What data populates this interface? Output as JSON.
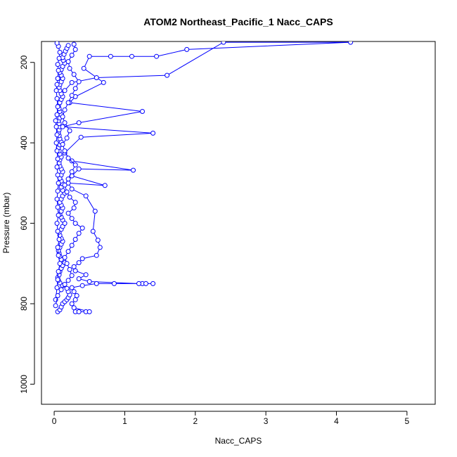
{
  "chart_data": {
    "type": "scatter",
    "title": "ATOM2 Northeast_Pacific_1 Nacc_CAPS",
    "xlabel": "Nacc_CAPS",
    "ylabel": "Pressure (mbar)",
    "xlim": [
      -0.18,
      5.4
    ],
    "ylim": [
      1050,
      148
    ],
    "y_reversed": true,
    "grid": false,
    "legend": "none",
    "color": "#0000ff",
    "x_ticks": [
      0,
      1,
      2,
      3,
      4,
      5
    ],
    "x_tick_labels": [
      "0",
      "1",
      "2",
      "3",
      "4",
      "5"
    ],
    "y_ticks": [
      200,
      400,
      600,
      800,
      1000
    ],
    "y_tick_labels": [
      "200",
      "400",
      "600",
      "800",
      "1000"
    ],
    "series": [
      {
        "values": [
          [
            0.05,
            820
          ],
          [
            0.08,
            815
          ],
          [
            0.1,
            808
          ],
          [
            0.12,
            800
          ],
          [
            0.15,
            795
          ],
          [
            0.18,
            790
          ],
          [
            0.2,
            785
          ],
          [
            0.22,
            778
          ],
          [
            0.2,
            770
          ],
          [
            0.18,
            762
          ],
          [
            0.12,
            755
          ],
          [
            0.08,
            748
          ],
          [
            0.06,
            742
          ],
          [
            0.05,
            735
          ],
          [
            0.07,
            728
          ],
          [
            0.08,
            720
          ],
          [
            0.1,
            712
          ],
          [
            0.12,
            705
          ],
          [
            0.15,
            698
          ],
          [
            0.1,
            690
          ],
          [
            0.08,
            682
          ],
          [
            0.07,
            675
          ],
          [
            0.06,
            668
          ],
          [
            0.08,
            660
          ],
          [
            0.1,
            652
          ],
          [
            0.12,
            645
          ],
          [
            0.1,
            638
          ],
          [
            0.08,
            630
          ],
          [
            0.07,
            622
          ],
          [
            0.1,
            615
          ],
          [
            0.12,
            608
          ],
          [
            0.15,
            600
          ],
          [
            0.12,
            592
          ],
          [
            0.1,
            585
          ],
          [
            0.08,
            578
          ],
          [
            0.1,
            570
          ],
          [
            0.12,
            562
          ],
          [
            0.1,
            555
          ],
          [
            0.08,
            548
          ],
          [
            0.1,
            540
          ],
          [
            0.12,
            532
          ],
          [
            0.15,
            525
          ],
          [
            0.12,
            518
          ],
          [
            0.1,
            510
          ],
          [
            0.12,
            502
          ],
          [
            0.1,
            495
          ],
          [
            0.08,
            488
          ],
          [
            0.1,
            480
          ],
          [
            0.12,
            472
          ],
          [
            0.1,
            465
          ],
          [
            0.08,
            458
          ],
          [
            0.07,
            450
          ],
          [
            0.08,
            442
          ],
          [
            0.1,
            435
          ],
          [
            0.08,
            428
          ],
          [
            0.07,
            420
          ],
          [
            0.06,
            412
          ],
          [
            0.08,
            405
          ],
          [
            0.1,
            398
          ],
          [
            0.08,
            390
          ],
          [
            0.07,
            382
          ],
          [
            0.06,
            375
          ],
          [
            0.07,
            368
          ],
          [
            0.08,
            360
          ],
          [
            0.07,
            352
          ],
          [
            0.06,
            345
          ],
          [
            0.08,
            338
          ],
          [
            0.1,
            330
          ],
          [
            0.08,
            322
          ],
          [
            0.07,
            315
          ],
          [
            0.06,
            308
          ],
          [
            0.08,
            300
          ],
          [
            0.1,
            292
          ],
          [
            0.12,
            285
          ],
          [
            0.1,
            278
          ],
          [
            0.08,
            270
          ],
          [
            0.07,
            262
          ],
          [
            0.08,
            255
          ],
          [
            0.1,
            248
          ],
          [
            0.12,
            240
          ],
          [
            0.1,
            232
          ],
          [
            0.08,
            225
          ],
          [
            0.1,
            218
          ],
          [
            0.12,
            210
          ],
          [
            0.15,
            202
          ],
          [
            0.13,
            195
          ],
          [
            0.12,
            188
          ],
          [
            0.14,
            180
          ],
          [
            0.16,
            172
          ],
          [
            0.18,
            165
          ],
          [
            0.2,
            158
          ]
        ]
      },
      {
        "values": [
          [
            0.02,
            790
          ],
          [
            0.04,
            760
          ],
          [
            0.05,
            740
          ],
          [
            0.06,
            720
          ],
          [
            0.08,
            700
          ],
          [
            0.06,
            680
          ],
          [
            0.05,
            660
          ],
          [
            0.07,
            640
          ],
          [
            0.05,
            620
          ],
          [
            0.04,
            600
          ],
          [
            0.06,
            580
          ],
          [
            0.05,
            560
          ],
          [
            0.04,
            540
          ],
          [
            0.05,
            520
          ],
          [
            0.06,
            500
          ],
          [
            0.05,
            480
          ],
          [
            0.04,
            460
          ],
          [
            0.05,
            440
          ],
          [
            0.04,
            420
          ],
          [
            0.03,
            400
          ],
          [
            0.04,
            380
          ],
          [
            0.03,
            360
          ],
          [
            0.02,
            345
          ],
          [
            0.04,
            330
          ],
          [
            0.05,
            310
          ],
          [
            0.04,
            290
          ],
          [
            0.03,
            270
          ],
          [
            0.04,
            255
          ],
          [
            0.05,
            240
          ],
          [
            0.06,
            220
          ],
          [
            0.05,
            205
          ],
          [
            0.07,
            190
          ],
          [
            0.08,
            175
          ],
          [
            0.06,
            160
          ],
          [
            0.04,
            152
          ]
        ]
      },
      {
        "values": [
          [
            0.3,
            820
          ],
          [
            0.35,
            820
          ],
          [
            0.45,
            820
          ],
          [
            0.5,
            820
          ],
          [
            0.28,
            810
          ],
          [
            0.25,
            800
          ],
          [
            0.3,
            790
          ],
          [
            0.32,
            780
          ],
          [
            0.28,
            770
          ],
          [
            0.25,
            760
          ],
          [
            0.4,
            755
          ],
          [
            0.6,
            750
          ],
          [
            0.85,
            750
          ],
          [
            1.25,
            750
          ],
          [
            1.3,
            750
          ],
          [
            1.4,
            750
          ],
          [
            1.2,
            750
          ],
          [
            0.5,
            745
          ],
          [
            0.35,
            738
          ],
          [
            0.45,
            728
          ],
          [
            0.3,
            718
          ],
          [
            0.28,
            708
          ],
          [
            0.35,
            698
          ],
          [
            0.4,
            688
          ],
          [
            0.6,
            680
          ],
          [
            0.65,
            660
          ],
          [
            0.62,
            642
          ],
          [
            0.55,
            620
          ],
          [
            0.58,
            570
          ],
          [
            0.45,
            532
          ],
          [
            0.25,
            515
          ],
          [
            0.2,
            500
          ],
          [
            0.72,
            506
          ],
          [
            0.25,
            482
          ],
          [
            0.35,
            465
          ],
          [
            1.12,
            468
          ],
          [
            0.25,
            445
          ],
          [
            0.15,
            425
          ],
          [
            0.38,
            386
          ],
          [
            1.4,
            376
          ],
          [
            0.12,
            360
          ],
          [
            0.35,
            350
          ],
          [
            1.25,
            322
          ],
          [
            0.22,
            300
          ],
          [
            0.3,
            285
          ],
          [
            0.7,
            250
          ],
          [
            0.42,
            215
          ],
          [
            0.5,
            185
          ],
          [
            0.8,
            185
          ],
          [
            1.1,
            185
          ],
          [
            1.45,
            185
          ],
          [
            1.88,
            168
          ],
          [
            4.2,
            150
          ],
          [
            2.4,
            150
          ],
          [
            1.6,
            232
          ],
          [
            0.6,
            238
          ],
          [
            0.25,
            250
          ],
          [
            0.15,
            270
          ]
        ]
      },
      {
        "values": [
          [
            0.02,
            805
          ],
          [
            0.05,
            780
          ],
          [
            0.1,
            765
          ],
          [
            0.15,
            752
          ],
          [
            0.2,
            742
          ],
          [
            0.25,
            730
          ],
          [
            0.22,
            715
          ],
          [
            0.18,
            700
          ],
          [
            0.15,
            685
          ],
          [
            0.2,
            670
          ],
          [
            0.25,
            655
          ],
          [
            0.3,
            640
          ],
          [
            0.35,
            625
          ],
          [
            0.4,
            612
          ],
          [
            0.3,
            600
          ],
          [
            0.25,
            588
          ],
          [
            0.2,
            575
          ],
          [
            0.28,
            562
          ],
          [
            0.3,
            548
          ],
          [
            0.22,
            535
          ],
          [
            0.18,
            522
          ],
          [
            0.15,
            505
          ],
          [
            0.2,
            490
          ],
          [
            0.25,
            472
          ],
          [
            0.3,
            455
          ],
          [
            0.2,
            438
          ],
          [
            0.15,
            420
          ],
          [
            0.12,
            404
          ],
          [
            0.18,
            388
          ],
          [
            0.22,
            370
          ],
          [
            0.15,
            350
          ],
          [
            0.12,
            335
          ],
          [
            0.15,
            318
          ],
          [
            0.2,
            300
          ],
          [
            0.25,
            282
          ],
          [
            0.3,
            265
          ],
          [
            0.35,
            248
          ],
          [
            0.28,
            230
          ],
          [
            0.22,
            215
          ],
          [
            0.2,
            198
          ],
          [
            0.25,
            182
          ],
          [
            0.3,
            168
          ],
          [
            0.28,
            155
          ]
        ]
      }
    ]
  }
}
